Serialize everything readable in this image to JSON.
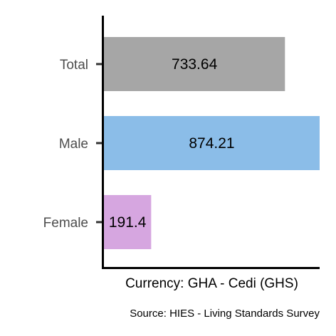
{
  "chart_data": {
    "type": "bar",
    "orientation": "horizontal",
    "categories": [
      "Total",
      "Male",
      "Female"
    ],
    "values": [
      733.64,
      874.21,
      191.4
    ],
    "value_labels": [
      "733.64",
      "874.21",
      "191.4"
    ],
    "colors": [
      "#a6a6a6",
      "#8bbde8",
      "#d6a6e0"
    ],
    "xlabel": "Currency: GHA - Cedi (GHS)",
    "ylabel": "",
    "xlim": [
      0,
      874.21
    ],
    "grid": false,
    "legend": "none",
    "caption": "Source:  HIES - Living Standards Survey"
  }
}
